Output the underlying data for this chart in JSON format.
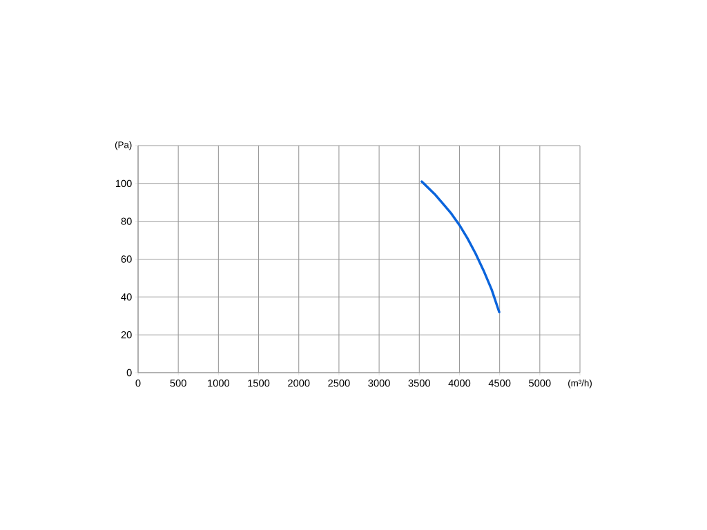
{
  "chart_data": {
    "type": "line",
    "xlabel": "(m³/h)",
    "ylabel": "(Pa)",
    "x": [
      3530,
      3700,
      3800,
      3900,
      4000,
      4100,
      4200,
      4300,
      4400,
      4495
    ],
    "series": [
      {
        "color": "#0a64dc",
        "values": [
          101,
          94,
          89,
          84,
          78,
          71,
          63,
          54,
          44,
          32
        ]
      }
    ],
    "xlim": [
      0,
      5500
    ],
    "ylim": [
      0,
      120
    ],
    "xticks": [
      0,
      500,
      1000,
      1500,
      2000,
      2500,
      3000,
      3500,
      4000,
      4500,
      5000,
      {
        "value": 5500,
        "label": null
      }
    ],
    "yticks": [
      0,
      20,
      40,
      60,
      80,
      100,
      {
        "value": 120,
        "label": null
      }
    ],
    "grid": true,
    "marker": "none",
    "line_style": "solid"
  }
}
